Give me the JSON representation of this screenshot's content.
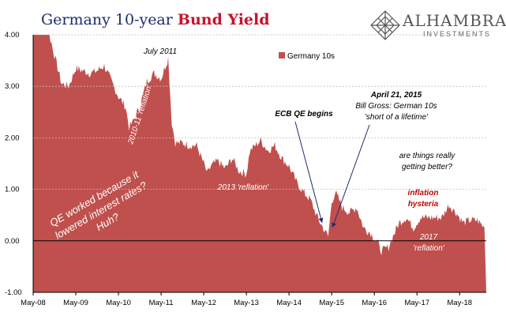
{
  "header": {
    "title_part1": "Germany 10-year ",
    "title_part2": "Bund Yield",
    "logo_name": "ALHAMBRA",
    "logo_sub": "INVESTMENTS",
    "logo_icon": "diamond-lattice-icon"
  },
  "colors": {
    "area": "#c0504d",
    "title_blue": "#1f2d6e",
    "title_red": "#c8102e",
    "annotation_red": "#c00000",
    "grid": "#bfbfbf"
  },
  "chart_data": {
    "type": "area",
    "title": "Germany 10-year Bund Yield",
    "ylim": [
      -1.0,
      4.0
    ],
    "yticks": [
      "4.00",
      "3.00",
      "2.00",
      "1.00",
      "0.00",
      "-1.00"
    ],
    "xticks": [
      "May-08",
      "May-09",
      "May-10",
      "May-11",
      "May-12",
      "May-13",
      "May-14",
      "May-15",
      "May-16",
      "May-17",
      "May-18"
    ],
    "grid": true,
    "legend_position": "top-center",
    "series": [
      {
        "name": "Germany 10s",
        "x": [
          "2008-05",
          "2008-07",
          "2008-09",
          "2008-11",
          "2009-01",
          "2009-03",
          "2009-05",
          "2009-07",
          "2009-09",
          "2009-11",
          "2010-01",
          "2010-03",
          "2010-05",
          "2010-07",
          "2010-08",
          "2010-09",
          "2010-11",
          "2011-01",
          "2011-03",
          "2011-05",
          "2011-07",
          "2011-08",
          "2011-09",
          "2011-11",
          "2012-01",
          "2012-03",
          "2012-05",
          "2012-06",
          "2012-07",
          "2012-09",
          "2012-11",
          "2013-01",
          "2013-03",
          "2013-05",
          "2013-06",
          "2013-09",
          "2013-11",
          "2014-01",
          "2014-03",
          "2014-05",
          "2014-07",
          "2014-09",
          "2014-11",
          "2015-01",
          "2015-03",
          "2015-04",
          "2015-05",
          "2015-06",
          "2015-08",
          "2015-10",
          "2015-12",
          "2016-02",
          "2016-04",
          "2016-06",
          "2016-07",
          "2016-09",
          "2016-10",
          "2016-12",
          "2017-02",
          "2017-04",
          "2017-06",
          "2017-08",
          "2017-10",
          "2017-12",
          "2018-02",
          "2018-04",
          "2018-06",
          "2018-08",
          "2018-10",
          "2018-12"
        ],
        "values": [
          4.0,
          4.35,
          4.15,
          3.6,
          3.05,
          3.0,
          3.35,
          3.3,
          3.25,
          3.3,
          3.4,
          3.1,
          2.8,
          2.6,
          2.2,
          2.3,
          2.6,
          3.1,
          3.25,
          3.15,
          3.55,
          2.3,
          1.9,
          1.9,
          1.85,
          1.85,
          1.5,
          1.3,
          1.45,
          1.55,
          1.4,
          1.6,
          1.35,
          1.3,
          1.75,
          1.95,
          1.75,
          1.85,
          1.6,
          1.45,
          1.15,
          0.95,
          0.8,
          0.45,
          0.2,
          0.08,
          0.75,
          0.95,
          0.65,
          0.55,
          0.65,
          0.25,
          0.15,
          -0.05,
          -0.2,
          -0.12,
          0.05,
          0.35,
          0.45,
          0.25,
          0.45,
          0.45,
          0.45,
          0.45,
          0.7,
          0.55,
          0.35,
          0.4,
          0.4,
          0.25
        ]
      }
    ],
    "annotations": [
      {
        "id": "july-2011",
        "text": "July 2011"
      },
      {
        "id": "reflation-2010",
        "text": "2010-11 'reflation'"
      },
      {
        "id": "reflation-2013",
        "text": "2013 'reflation'"
      },
      {
        "id": "ecb-qe",
        "text": "ECB QE begins"
      },
      {
        "id": "april-2015-date",
        "text": "April 21, 2015"
      },
      {
        "id": "april-2015-gross",
        "text": "Bill Gross: German 10s"
      },
      {
        "id": "april-2015-quote",
        "text": "'short of a lifetime'"
      },
      {
        "id": "qe-line1",
        "text": "QE worked because it"
      },
      {
        "id": "qe-line2",
        "text": "lowered interest rates?"
      },
      {
        "id": "qe-line3",
        "text": "Huh?"
      },
      {
        "id": "better-line1",
        "text": "are things really"
      },
      {
        "id": "better-line2",
        "text": "getting better?"
      },
      {
        "id": "hysteria-line1",
        "text": "inflation"
      },
      {
        "id": "hysteria-line2",
        "text": "hysteria"
      },
      {
        "id": "reflation-2017-line1",
        "text": "2017"
      },
      {
        "id": "reflation-2017-line2",
        "text": "'reflation'"
      }
    ]
  }
}
